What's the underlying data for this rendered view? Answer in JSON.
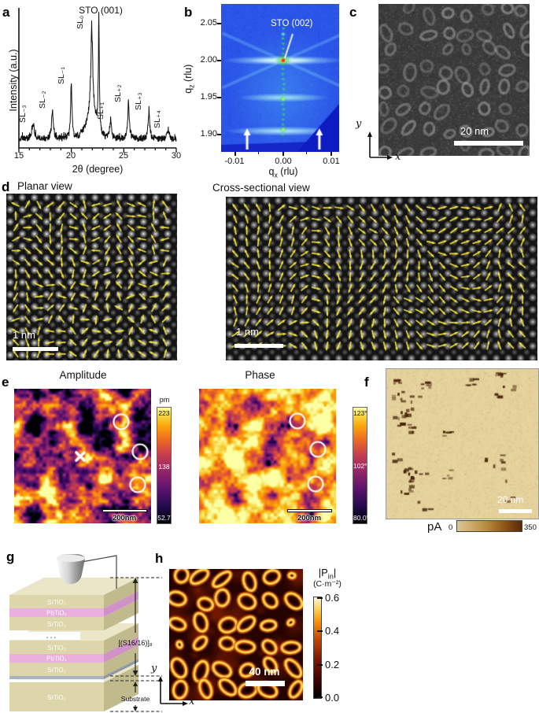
{
  "panel_a": {
    "label": "a",
    "xlabel": "2θ (degree)",
    "ylabel": "Intensity (a.u.)",
    "xticks": [
      "15",
      "20",
      "25",
      "30"
    ],
    "main_peak_label": "STO (001)",
    "chart_data": {
      "type": "line",
      "xlabel": "2θ (degree)",
      "ylabel": "Intensity (a.u.)",
      "xlim": [
        15,
        30
      ],
      "noise_floor": 0.07,
      "peaks": [
        {
          "label": "SL₋₃",
          "two_theta": 16.35,
          "height": 0.13,
          "width": 0.16
        },
        {
          "label": "SL₋₂",
          "two_theta": 18.2,
          "height": 0.27,
          "width": 0.1
        },
        {
          "label": "SL₋₁",
          "two_theta": 20.0,
          "height": 0.5,
          "width": 0.08
        },
        {
          "label": "SL₀",
          "two_theta": 21.95,
          "height": 0.82,
          "width": 0.12
        },
        {
          "label": "STO (001)",
          "two_theta": 22.62,
          "height": 1.12,
          "width": 0.05
        },
        {
          "label": "SL₊₁",
          "two_theta": 23.75,
          "height": 0.16,
          "width": 0.09
        },
        {
          "label": "SL₊₂",
          "two_theta": 25.45,
          "height": 0.33,
          "width": 0.09
        },
        {
          "label": "SL₊₃",
          "two_theta": 27.4,
          "height": 0.26,
          "width": 0.09
        },
        {
          "label": "SL₊₄",
          "two_theta": 29.25,
          "height": 0.09,
          "width": 0.1
        }
      ]
    }
  },
  "panel_b": {
    "label": "b",
    "ylabel_base": "q",
    "ylabel_sub": "z",
    "ylabel_unit": "(rlu)",
    "xlabel_base": "q",
    "xlabel_sub": "x",
    "xlabel_unit": "(rlu)",
    "yticks": [
      "2.05",
      "2.00",
      "1.95",
      "1.90"
    ],
    "xticks": [
      "-0.01",
      "0.00",
      "0.01"
    ],
    "annotation": "STO (002)"
  },
  "panel_c": {
    "label": "c",
    "scalebar": "20 nm",
    "axis_x": "x",
    "axis_y": "y"
  },
  "panel_d": {
    "label": "d",
    "planar_title": "Planar view",
    "cross_title": "Cross-sectional view",
    "planar_scalebar": "1 nm",
    "cross_scalebar": "1 nm"
  },
  "panel_e": {
    "label": "e",
    "amplitude_title": "Amplitude",
    "phase_title": "Phase",
    "amplitude_cbar": {
      "unit": "pm",
      "max": "223",
      "mid": "138",
      "min": "52.7"
    },
    "phase_cbar": {
      "max": "123°",
      "mid": "102°",
      "min": "80.0°"
    },
    "amplitude_scalebar": "200nm",
    "phase_scalebar": "200nm"
  },
  "panel_f": {
    "label": "f",
    "scalebar": "20 nm",
    "cbar_unit": "pA",
    "cbar_min": "0",
    "cbar_max": "350"
  },
  "panel_g": {
    "label": "g",
    "stack1": [
      "SrTiO₃",
      "PbTiO₃",
      "SrTiO₃"
    ],
    "ellipsis": "...",
    "stack2": [
      "SrTiO₃",
      "PbTiO₃",
      "SrTiO₃"
    ],
    "substrate_layer": "SrTiO₃",
    "superlattice_label": "[(S16/16)]₈",
    "substrate_label": "Substrate"
  },
  "panel_h": {
    "label": "h",
    "cbar_title_base": "|P",
    "cbar_title_sub": "in",
    "cbar_title_end": "|",
    "cbar_unit": "(C·m⁻²)",
    "cbar_ticks": [
      "0.6",
      "0.4",
      "0.2",
      "0.0"
    ],
    "scalebar": "40 nm",
    "axis_x": "x",
    "axis_y": "y"
  }
}
